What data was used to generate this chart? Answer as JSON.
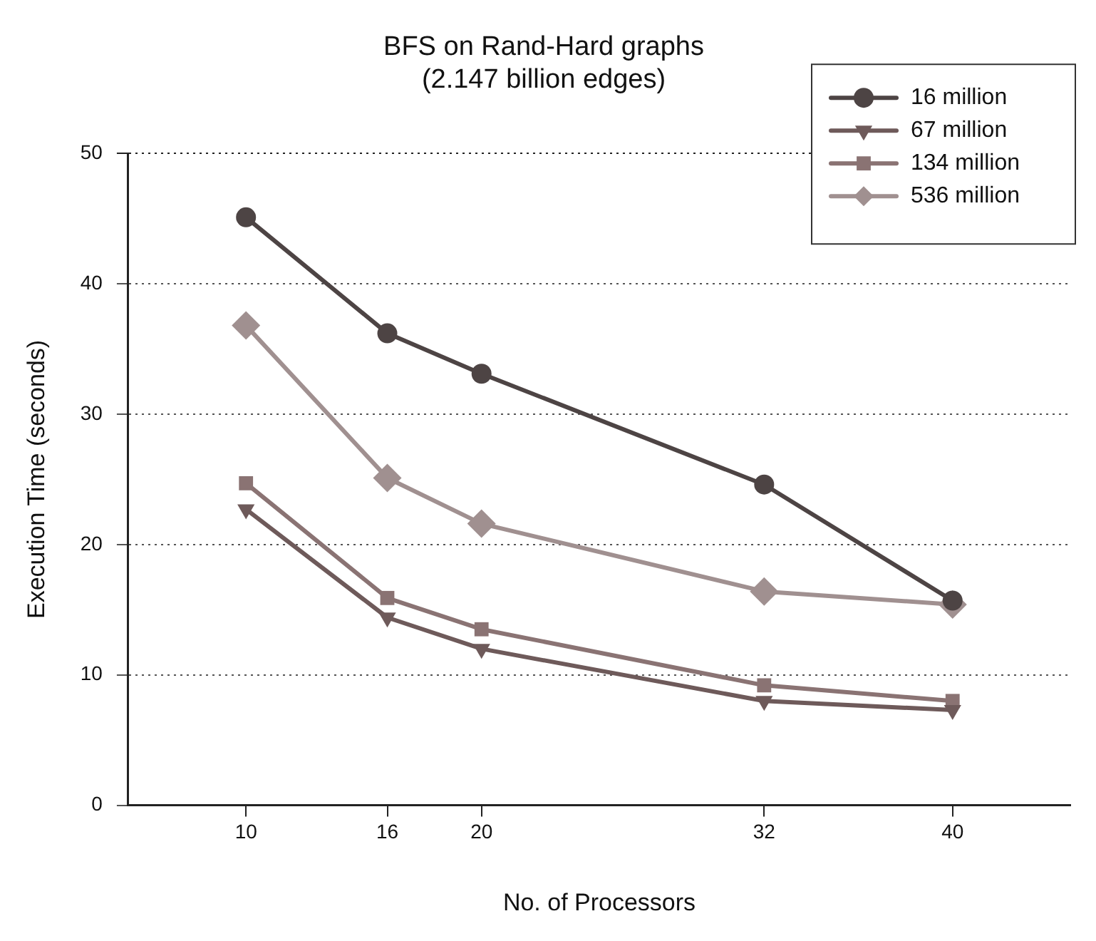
{
  "chart_data": {
    "type": "line",
    "title": "BFS on Rand-Hard graphs\n(2.147 billion edges)",
    "xlabel": "No. of Processors",
    "ylabel": "Execution Time (seconds)",
    "x": [
      10,
      16,
      20,
      32,
      40
    ],
    "series": [
      {
        "name": "16 million",
        "color": "#4d4444",
        "marker": "circle",
        "values": [
          45.1,
          36.2,
          33.1,
          24.6,
          15.7
        ]
      },
      {
        "name": "67 million",
        "color": "#6e5a5a",
        "marker": "triangle",
        "values": [
          22.7,
          14.4,
          12.0,
          8.0,
          7.3
        ]
      },
      {
        "name": "134 million",
        "color": "#8a7373",
        "marker": "square",
        "values": [
          24.7,
          15.9,
          13.5,
          9.2,
          8.0
        ]
      },
      {
        "name": "536 million",
        "color": "#a09090",
        "marker": "diamond",
        "values": [
          36.8,
          25.1,
          21.6,
          16.4,
          15.4
        ]
      }
    ],
    "xlim": [
      5,
      45
    ],
    "xticks": [
      10,
      16,
      20,
      32,
      40
    ],
    "ylim": [
      0,
      50
    ],
    "yticks": [
      0,
      10,
      20,
      30,
      40,
      50
    ],
    "grid": "y",
    "legend": "top right",
    "line_style": "solid"
  }
}
